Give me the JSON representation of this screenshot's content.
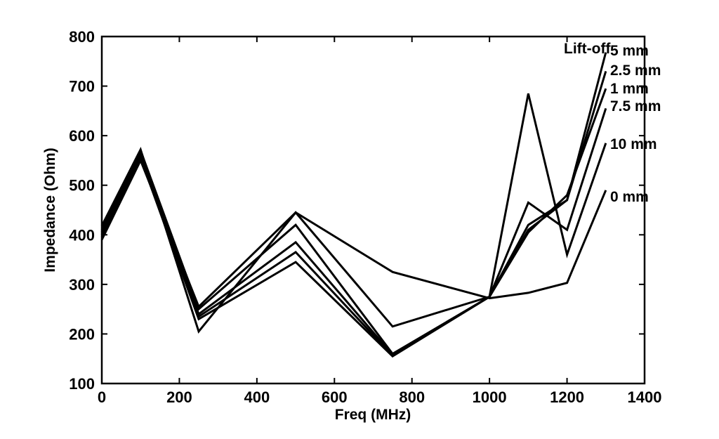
{
  "chart_data": {
    "type": "line",
    "title": "",
    "xlabel": "Freq (MHz)",
    "ylabel": "Impedance (Ohm)",
    "xlim": [
      0,
      1400
    ],
    "ylim": [
      100,
      800
    ],
    "xticks": [
      0,
      200,
      400,
      600,
      800,
      1000,
      1200,
      1400
    ],
    "yticks": [
      100,
      200,
      300,
      400,
      500,
      600,
      700,
      800
    ],
    "grid": false,
    "annotation_title": "Lift-off",
    "x": [
      0,
      100,
      250,
      500,
      750,
      1000,
      1100,
      1200,
      1300
    ],
    "series": [
      {
        "name": "5 mm",
        "values": [
          405,
          565,
          240,
          385,
          158,
          275,
          420,
          470,
          768
        ]
      },
      {
        "name": "2.5 mm",
        "values": [
          400,
          560,
          235,
          365,
          156,
          275,
          410,
          470,
          730
        ]
      },
      {
        "name": "1 mm",
        "values": [
          395,
          555,
          230,
          345,
          155,
          275,
          405,
          480,
          695
        ]
      },
      {
        "name": "7.5 mm",
        "values": [
          410,
          570,
          250,
          420,
          160,
          275,
          465,
          410,
          655
        ]
      },
      {
        "name": "10 mm",
        "values": [
          418,
          572,
          205,
          445,
          215,
          275,
          685,
          360,
          585
        ]
      },
      {
        "name": "0 mm",
        "values": [
          390,
          550,
          255,
          445,
          325,
          272,
          283,
          303,
          490
        ]
      }
    ]
  },
  "colors": {
    "line": "#000000",
    "background": "#ffffff"
  }
}
